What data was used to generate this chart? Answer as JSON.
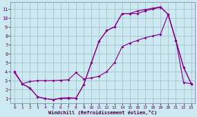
{
  "xlabel": "Windchill (Refroidissement éolien,°C)",
  "bg_color": "#cce8f0",
  "line_color": "#880088",
  "grid_color": "#99bbcc",
  "xlim": [
    -0.5,
    23.5
  ],
  "ylim": [
    0.5,
    11.8
  ],
  "xticks": [
    0,
    1,
    2,
    3,
    4,
    5,
    6,
    7,
    8,
    9,
    10,
    11,
    12,
    13,
    14,
    15,
    16,
    17,
    18,
    19,
    20,
    21,
    22,
    23
  ],
  "yticks": [
    1,
    2,
    3,
    4,
    5,
    6,
    7,
    8,
    9,
    10,
    11
  ],
  "curve_a_x": [
    0,
    1,
    2,
    3,
    4,
    5,
    6,
    7,
    8,
    9,
    10,
    11,
    12,
    13,
    14,
    15,
    16,
    17,
    18,
    19,
    20,
    21,
    22,
    23
  ],
  "curve_a_y": [
    4.0,
    2.65,
    2.15,
    1.2,
    1.0,
    0.88,
    1.0,
    1.0,
    1.05,
    2.55,
    5.0,
    7.4,
    8.6,
    9.0,
    10.5,
    10.5,
    10.5,
    10.8,
    11.0,
    11.2,
    10.4,
    7.5,
    4.5,
    2.65
  ],
  "curve_b_x": [
    0,
    1,
    2,
    3,
    4,
    5,
    6,
    7,
    8,
    9,
    10,
    11,
    12,
    13,
    14,
    15,
    16,
    17,
    18,
    19,
    20,
    21,
    22,
    23
  ],
  "curve_b_y": [
    3.9,
    2.65,
    2.9,
    3.0,
    3.0,
    3.0,
    3.05,
    3.1,
    3.9,
    3.2,
    3.3,
    3.5,
    4.0,
    5.0,
    6.8,
    7.2,
    7.5,
    7.8,
    8.0,
    8.2,
    10.4,
    7.5,
    2.8,
    2.65
  ],
  "curve_c_x": [
    0,
    1,
    2,
    3,
    4,
    5,
    6,
    7,
    8,
    9,
    10,
    11,
    12,
    13,
    14,
    15,
    16,
    17,
    18,
    19,
    20,
    21,
    22,
    23
  ],
  "curve_c_y": [
    4.0,
    2.65,
    2.2,
    1.2,
    1.0,
    0.88,
    1.05,
    1.1,
    1.05,
    2.55,
    5.0,
    7.4,
    8.6,
    9.0,
    10.5,
    10.5,
    10.8,
    10.95,
    11.1,
    11.25,
    10.4,
    7.5,
    4.5,
    2.65
  ]
}
